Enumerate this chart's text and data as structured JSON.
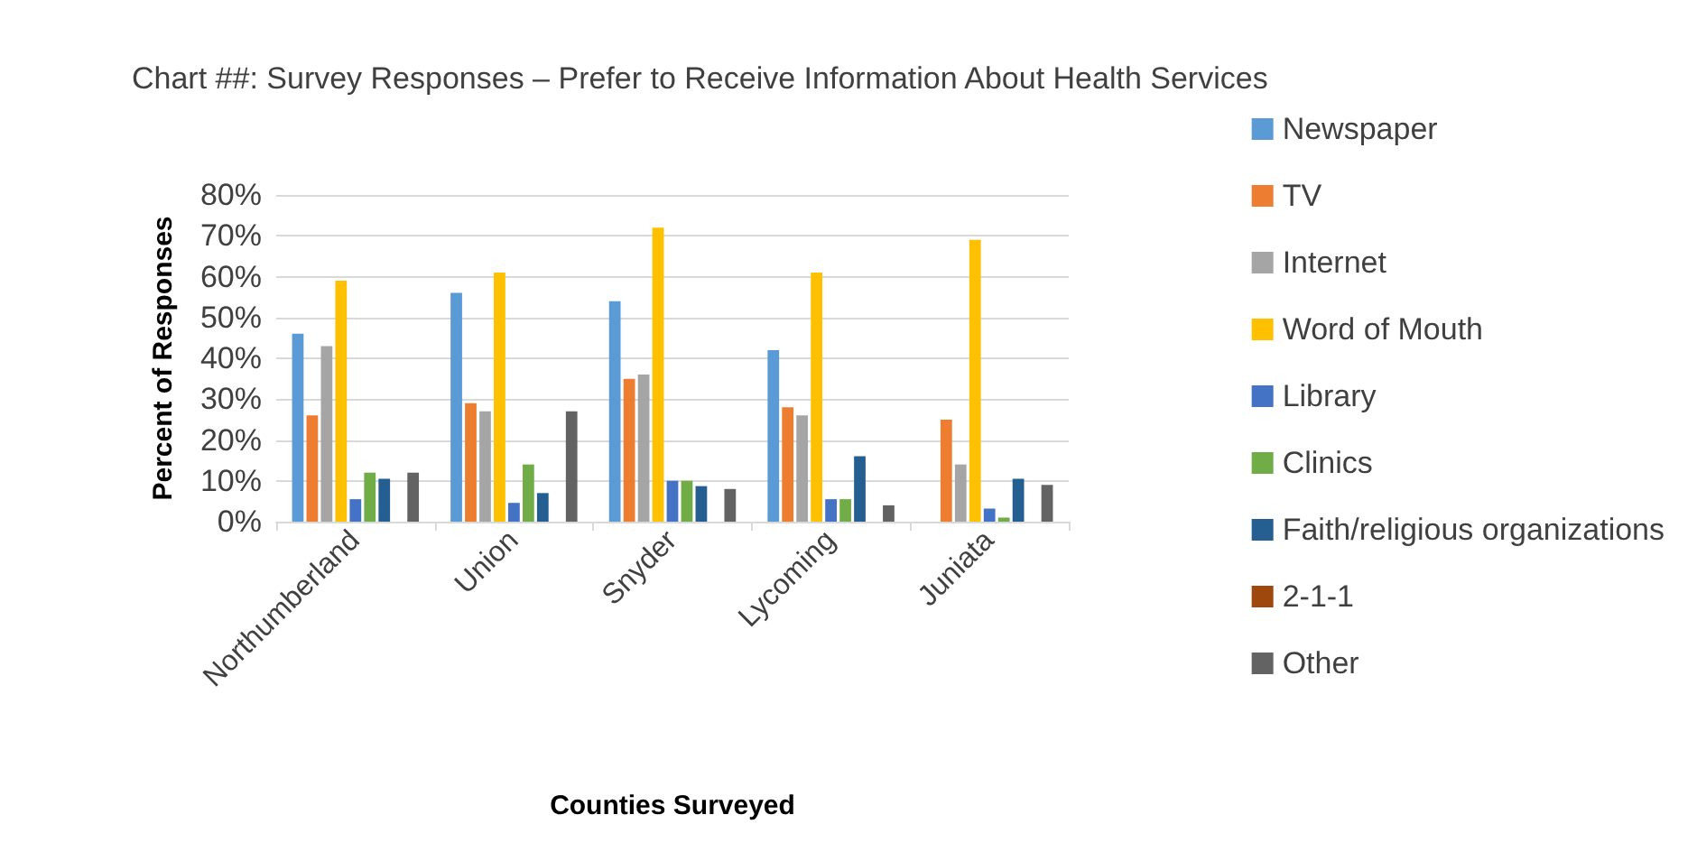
{
  "chart_data": {
    "type": "bar",
    "title": "Chart ##: Survey Responses – Prefer to Receive Information About Health Services",
    "xlabel": "Counties Surveyed",
    "ylabel": "Percent of Responses",
    "categories": [
      "Northumberland",
      "Union",
      "Snyder",
      "Lycoming",
      "Juniata"
    ],
    "series": [
      {
        "name": "Newspaper",
        "color": "#5b9bd5",
        "values": [
          46,
          56,
          54,
          42,
          0
        ]
      },
      {
        "name": "TV",
        "color": "#ed7d31",
        "values": [
          26,
          29,
          35,
          28,
          25
        ]
      },
      {
        "name": "Internet",
        "color": "#a5a5a5",
        "values": [
          43,
          27,
          36,
          26,
          14
        ]
      },
      {
        "name": "Word of Mouth",
        "color": "#ffc000",
        "values": [
          59,
          61,
          72,
          61,
          69
        ]
      },
      {
        "name": "Library",
        "color": "#4472c4",
        "values": [
          5.5,
          4.6,
          10,
          5.5,
          3.2
        ]
      },
      {
        "name": "Clinics",
        "color": "#70ad47",
        "values": [
          12,
          14,
          10,
          5.5,
          1
        ]
      },
      {
        "name": "Faith/religious organizations",
        "color": "#255e91",
        "values": [
          10.5,
          7,
          8.7,
          16,
          10.5
        ]
      },
      {
        "name": "2-1-1",
        "color": "#9e480e",
        "values": [
          0,
          0,
          0,
          0,
          0
        ]
      },
      {
        "name": "Other",
        "color": "#636363",
        "values": [
          12,
          27,
          8,
          4,
          9
        ]
      }
    ],
    "ylim": [
      0,
      80
    ],
    "yticks": [
      {
        "value": 0,
        "label": "0%"
      },
      {
        "value": 10,
        "label": "10%"
      },
      {
        "value": 20,
        "label": "20%"
      },
      {
        "value": 30,
        "label": "30%"
      },
      {
        "value": 40,
        "label": "40%"
      },
      {
        "value": 50,
        "label": "50%"
      },
      {
        "value": 60,
        "label": "60%"
      },
      {
        "value": 70,
        "label": "70%"
      },
      {
        "value": 80,
        "label": "80%"
      }
    ],
    "grid": "y",
    "legend": "right"
  }
}
